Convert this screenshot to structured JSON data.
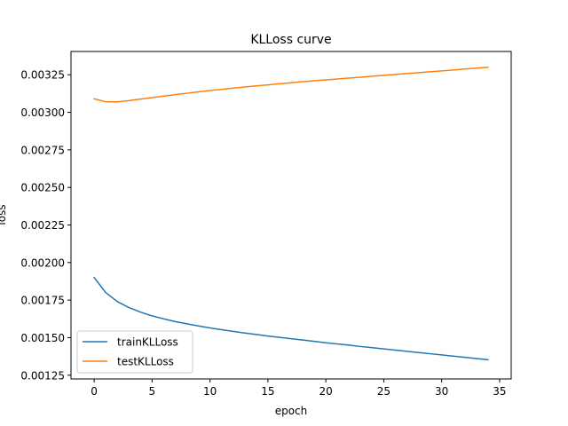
{
  "chart_data": {
    "type": "line",
    "title": "KLLoss curve",
    "xlabel": "epoch",
    "ylabel": "loss",
    "xlim": [
      -2,
      36
    ],
    "ylim": [
      0.001225,
      0.003405
    ],
    "xticks": [
      0,
      5,
      10,
      15,
      20,
      25,
      30,
      35
    ],
    "xtick_labels": [
      "0",
      "5",
      "10",
      "15",
      "20",
      "25",
      "30",
      "35"
    ],
    "yticks": [
      0.00125,
      0.0015,
      0.00175,
      0.002,
      0.00225,
      0.0025,
      0.00275,
      0.003,
      0.00325
    ],
    "ytick_labels": [
      "0.00125",
      "0.00150",
      "0.00175",
      "0.00200",
      "0.00225",
      "0.00250",
      "0.00275",
      "0.00300",
      "0.00325"
    ],
    "grid": false,
    "legend_position": "lower-left",
    "x": [
      0,
      1,
      2,
      3,
      4,
      5,
      6,
      7,
      8,
      9,
      10,
      11,
      12,
      13,
      14,
      15,
      16,
      17,
      18,
      19,
      20,
      21,
      22,
      23,
      24,
      25,
      26,
      27,
      28,
      29,
      30,
      31,
      32,
      33,
      34
    ],
    "series": [
      {
        "name": "trainKLLoss",
        "color": "#1f77b4",
        "values": [
          0.0019,
          0.0018,
          0.00174,
          0.0017,
          0.00167,
          0.001645,
          0.001625,
          0.001607,
          0.001592,
          0.001578,
          0.001565,
          0.001553,
          0.001542,
          0.001531,
          0.001521,
          0.001511,
          0.001502,
          0.001493,
          0.001484,
          0.001475,
          0.001466,
          0.001458,
          0.00145,
          0.001441,
          0.001433,
          0.001425,
          0.001417,
          0.001409,
          0.001401,
          0.001393,
          0.001385,
          0.001377,
          0.001369,
          0.001361,
          0.001353
        ]
      },
      {
        "name": "testKLLoss",
        "color": "#ff7f0e",
        "values": [
          0.00309,
          0.00307,
          0.00307,
          0.003078,
          0.003088,
          0.003098,
          0.003108,
          0.003118,
          0.003127,
          0.003136,
          0.003145,
          0.003153,
          0.003161,
          0.003169,
          0.003176,
          0.003183,
          0.00319,
          0.003197,
          0.003204,
          0.00321,
          0.003216,
          0.003222,
          0.003228,
          0.003234,
          0.00324,
          0.003246,
          0.003252,
          0.003258,
          0.003264,
          0.00327,
          0.003276,
          0.003282,
          0.003288,
          0.003294,
          0.0033
        ]
      }
    ]
  }
}
